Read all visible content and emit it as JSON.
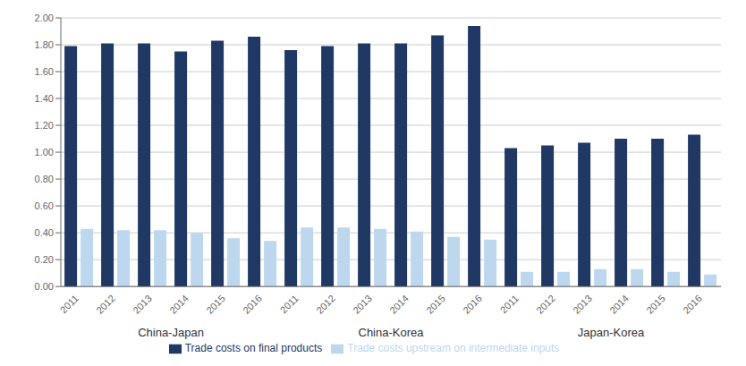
{
  "chart_data": {
    "type": "bar",
    "categories": [
      "2011",
      "2012",
      "2013",
      "2014",
      "2015",
      "2016",
      "2011",
      "2012",
      "2013",
      "2014",
      "2015",
      "2016",
      "2011",
      "2012",
      "2013",
      "2014",
      "2015",
      "2016"
    ],
    "groups": [
      "China-Japan",
      "China-Korea",
      "Japan-Korea"
    ],
    "series": [
      {
        "name": "Trade costs on final products",
        "color": "#1F3864",
        "values": [
          1.79,
          1.81,
          1.81,
          1.75,
          1.83,
          1.86,
          1.76,
          1.79,
          1.81,
          1.81,
          1.87,
          1.94,
          1.03,
          1.05,
          1.07,
          1.1,
          1.1,
          1.13
        ]
      },
      {
        "name": "Trade costs upstream on intermediate inputs",
        "color": "#BDD7EE",
        "values": [
          0.43,
          0.42,
          0.42,
          0.4,
          0.36,
          0.34,
          0.44,
          0.44,
          0.43,
          0.41,
          0.37,
          0.35,
          0.11,
          0.11,
          0.13,
          0.13,
          0.11,
          0.09
        ]
      }
    ],
    "ylim": [
      0.0,
      2.0
    ],
    "yticks": [
      {
        "value": 0.0,
        "label": "0.00"
      },
      {
        "value": 0.2,
        "label": "0.20"
      },
      {
        "value": 0.4,
        "label": "0.40"
      },
      {
        "value": 0.6,
        "label": "0.60"
      },
      {
        "value": 0.8,
        "label": "0.80"
      },
      {
        "value": 1.0,
        "label": "1.00"
      },
      {
        "value": 1.2,
        "label": "1.20"
      },
      {
        "value": 1.4,
        "label": "1.40"
      },
      {
        "value": 1.6,
        "label": "1.60"
      },
      {
        "value": 1.8,
        "label": "1.80"
      },
      {
        "value": 2.0,
        "label": "2.00"
      }
    ],
    "grid": true,
    "legend": "bottom"
  }
}
